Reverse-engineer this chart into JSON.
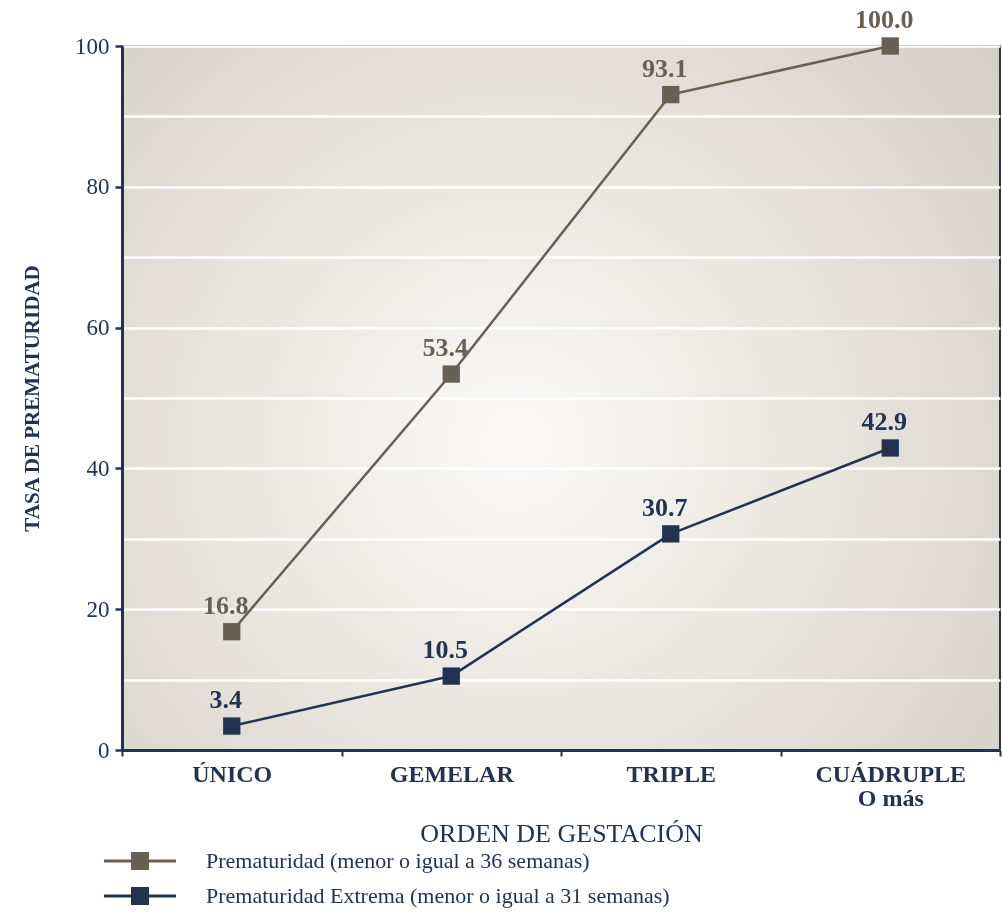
{
  "chart_data": {
    "type": "line",
    "xlabel": "ORDEN DE GESTACIÓN",
    "ylabel": "TASA DE PREMATURIDAD",
    "categories": [
      "ÚNICO",
      "GEMELAR",
      "TRIPLE",
      "CUÁDRUPLE O más"
    ],
    "series": [
      {
        "name": "Prematuridad (menor o igual a 36 semanas)",
        "color": "#686052",
        "values": [
          16.8,
          53.4,
          93.1,
          100.0
        ],
        "value_labels": [
          "16.8",
          "53.4",
          "93.1",
          "100.0"
        ]
      },
      {
        "name": "Prematuridad Extrema (menor o igual a 31 semanas)",
        "color": "#22334f",
        "values": [
          3.4,
          10.5,
          30.7,
          42.9
        ],
        "value_labels": [
          "3.4",
          "10.5",
          "30.7",
          "42.9"
        ]
      }
    ],
    "ylim": [
      0,
      100
    ],
    "yticks": [
      0,
      {
        "value": 10,
        "label": null
      },
      20,
      {
        "value": 30,
        "label": null
      },
      40,
      {
        "value": 50,
        "label": null
      },
      60,
      {
        "value": 70,
        "label": null
      },
      80,
      {
        "value": 90,
        "label": null
      },
      100
    ],
    "grid": "y",
    "legend": "bottom",
    "marker": "square",
    "line_style": "solid"
  }
}
